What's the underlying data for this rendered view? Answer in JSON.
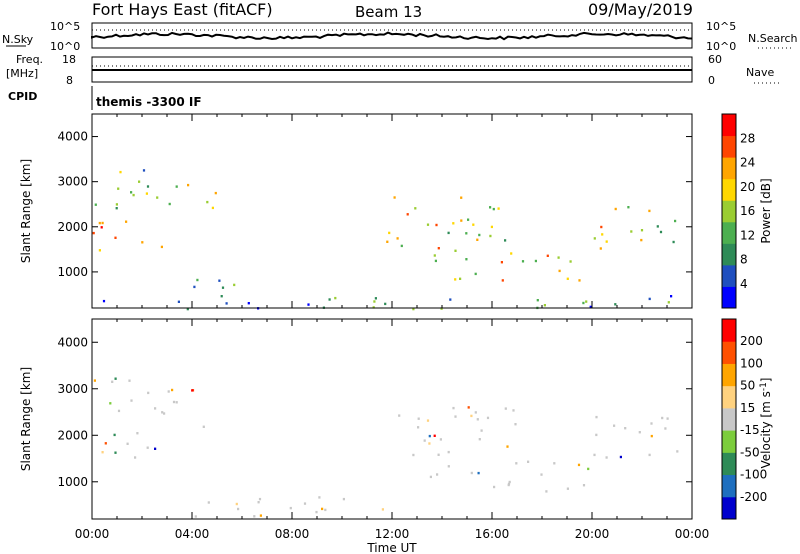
{
  "header": {
    "station": "Fort Hays East (fitACF)",
    "beam": "Beam 13",
    "date": "09/May/2019"
  },
  "panels": {
    "nsky": {
      "left_label": "N.Sky",
      "left_ticks": [
        "10^5",
        "10^0"
      ],
      "right_ticks": [
        "10^5",
        "10^0"
      ],
      "right_label": "N.Search"
    },
    "freq": {
      "left_label_1": "Freq.",
      "left_label_2": "[MHz]",
      "left_ticks": [
        "18",
        "8"
      ],
      "right_ticks": [
        "60",
        "0"
      ],
      "right_label": "Nave"
    },
    "cpid": {
      "label": "CPID",
      "program": "themis -3300 IF"
    }
  },
  "chart_data": [
    {
      "type": "heatmap",
      "name_on_colorbar": "Power [dB]",
      "ylabel": "Slant Range [km]",
      "yticks": [
        "1000",
        "2000",
        "3000",
        "4000"
      ],
      "ylim": [
        200,
        4500
      ],
      "x_ticks": [
        "00:00",
        "04:00",
        "08:00",
        "12:00",
        "16:00",
        "20:00",
        "00:00"
      ],
      "colorbar_ticks": [
        "4",
        "8",
        "12",
        "16",
        "20",
        "24",
        "28"
      ],
      "colorbar_range": [
        0,
        32
      ],
      "colors": [
        "#0000ff",
        "#1f4fbf",
        "#2e8b57",
        "#4caf50",
        "#9acd32",
        "#ffd700",
        "#ffa500",
        "#ff4500",
        "#ff0000"
      ],
      "echo_regions": [
        {
          "t0": 0.0,
          "t1": 2.8,
          "r0": 1400,
          "r1": 2200,
          "level": 0.85
        },
        {
          "t0": 0.0,
          "t1": 3.5,
          "r0": 2400,
          "r1": 3300,
          "level": 0.35
        },
        {
          "t0": 3.0,
          "t1": 5.0,
          "r0": 2200,
          "r1": 3000,
          "level": 0.45
        },
        {
          "t0": 4.0,
          "t1": 6.0,
          "r0": 300,
          "r1": 900,
          "level": 0.3
        },
        {
          "t0": 11.5,
          "t1": 17.0,
          "r0": 1500,
          "r1": 2700,
          "level": 0.55
        },
        {
          "t0": 13.5,
          "t1": 20.0,
          "r0": 800,
          "r1": 1500,
          "level": 0.6
        },
        {
          "t0": 20.0,
          "t1": 24.0,
          "r0": 1500,
          "r1": 2500,
          "level": 0.55
        },
        {
          "t0": 0.0,
          "t1": 24.0,
          "r0": 200,
          "r1": 500,
          "level": 0.3
        }
      ]
    },
    {
      "type": "heatmap",
      "name_on_colorbar": "Velocity [m s^-1]",
      "ylabel": "Slant Range [km]",
      "yticks": [
        "1000",
        "2000",
        "3000",
        "4000"
      ],
      "ylim": [
        200,
        4500
      ],
      "x_ticks": [
        "00:00",
        "04:00",
        "08:00",
        "12:00",
        "16:00",
        "20:00",
        "00:00"
      ],
      "xlabel": "Time UT",
      "colorbar_ticks": [
        "200",
        "100",
        "50",
        "15",
        "-15",
        "-50",
        "-100",
        "-200"
      ],
      "colors": [
        "#0000cd",
        "#1e6fbf",
        "#2e8b57",
        "#7ccd3c",
        "#c8c8c8",
        "#ffd27f",
        "#ffa500",
        "#ff5000",
        "#ff0000"
      ],
      "echo_regions": [
        {
          "t0": 0.0,
          "t1": 2.8,
          "r0": 1400,
          "r1": 2200,
          "level": 0.5
        },
        {
          "t0": 0.0,
          "t1": 3.5,
          "r0": 2400,
          "r1": 3300,
          "level": 0.5
        },
        {
          "t0": 3.0,
          "t1": 5.0,
          "r0": 2200,
          "r1": 3000,
          "level": 0.5
        },
        {
          "t0": 11.5,
          "t1": 17.0,
          "r0": 1500,
          "r1": 2700,
          "level": 0.5
        },
        {
          "t0": 13.5,
          "t1": 20.0,
          "r0": 800,
          "r1": 1500,
          "level": 0.5
        },
        {
          "t0": 20.0,
          "t1": 24.0,
          "r0": 1500,
          "r1": 2500,
          "level": 0.5
        },
        {
          "t0": 4.0,
          "t1": 13.0,
          "r0": 250,
          "r1": 700,
          "level": 0.65
        }
      ]
    }
  ]
}
